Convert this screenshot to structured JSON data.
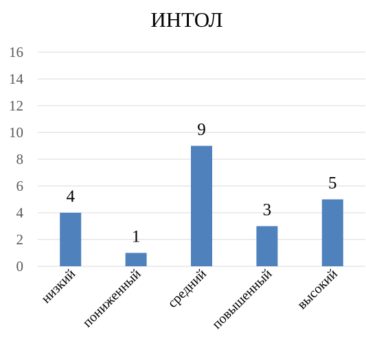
{
  "chart_data": {
    "type": "bar",
    "title": "ИНТОЛ",
    "categories": [
      "низкий",
      "пониженный",
      "средний",
      "повышенный",
      "высокий"
    ],
    "values": [
      4,
      1,
      9,
      3,
      5
    ],
    "ylim": [
      0,
      16
    ],
    "yticks": [
      "0",
      "2",
      "4",
      "6",
      "8",
      "10",
      "12",
      "14",
      "16"
    ],
    "grid": true,
    "legend": "none",
    "bar_color": "#4f81bd",
    "data_labels": [
      "4",
      "1",
      "9",
      "3",
      "5"
    ]
  }
}
